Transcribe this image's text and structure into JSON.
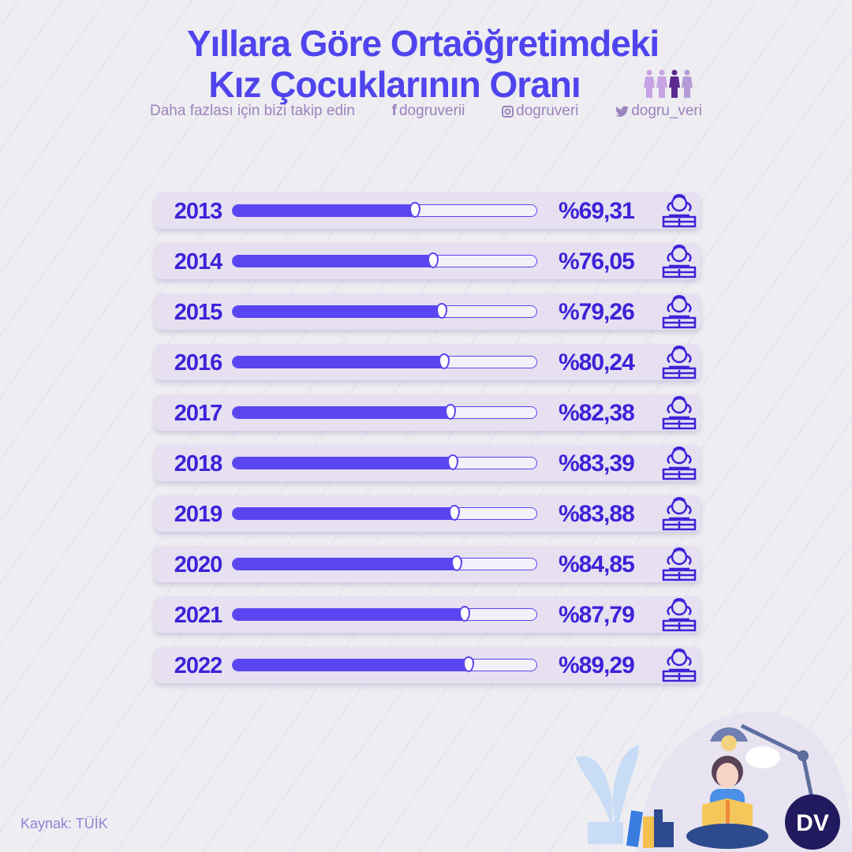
{
  "title": {
    "line1": "Yıllara Göre Ortaöğretimdeki",
    "line2": "Kız Çocuklarının Oranı"
  },
  "follow": {
    "text": "Daha fazlası için bizi takip edin",
    "facebook": "dogruverii",
    "instagram": "dogruveri",
    "twitter": "dogru_veri"
  },
  "source": "Kaynak: TÜİK",
  "colors": {
    "title": "#4F44EE",
    "bar_fill": "#5B45F0",
    "row_bg": "#E6E0F1",
    "text": "#3D22D8"
  },
  "chart_data": {
    "type": "bar",
    "orientation": "horizontal",
    "categories": [
      "2013",
      "2014",
      "2015",
      "2016",
      "2017",
      "2018",
      "2019",
      "2020",
      "2021",
      "2022"
    ],
    "values": [
      69.31,
      76.05,
      79.26,
      80.24,
      82.38,
      83.39,
      83.88,
      84.85,
      87.79,
      89.29
    ],
    "labels": [
      "%69,31",
      "%76,05",
      "%79,26",
      "%80,24",
      "%82,38",
      "%83,39",
      "%83,88",
      "%84,85",
      "%87,79",
      "%89,29"
    ],
    "unit": "%",
    "icon": "girl-reading-icon"
  }
}
